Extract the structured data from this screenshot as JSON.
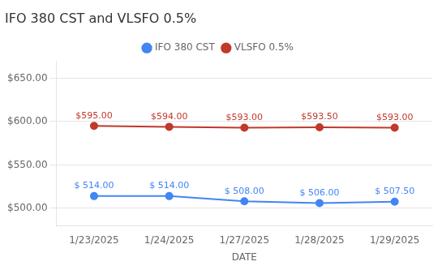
{
  "chart_data": {
    "type": "line",
    "title": "IFO 380 CST and VLSFO 0.5%",
    "xlabel": "DATE",
    "categories": [
      "1/23/2025",
      "1/24/2025",
      "1/27/2025",
      "1/28/2025",
      "1/29/2025"
    ],
    "series": [
      {
        "name": "IFO 380 CST",
        "color": "#4285F4",
        "marker": "circle",
        "values": [
          514.0,
          514.0,
          508.0,
          506.0,
          507.5
        ],
        "value_labels": [
          "$ 514.00",
          "$ 514.00",
          "$ 508.00",
          "$ 506.00",
          "$ 507.50"
        ]
      },
      {
        "name": "VLSFO 0.5%",
        "color": "#C0392B",
        "marker": "circle",
        "values": [
          595.0,
          594.0,
          593.0,
          593.5,
          593.0
        ],
        "value_labels": [
          "$595.00",
          "$594.00",
          "$593.00",
          "$593.50",
          "$593.00"
        ]
      }
    ],
    "ylim": [
      480,
      670
    ],
    "yticks": [
      {
        "value": 500,
        "label": "$500.00"
      },
      {
        "value": 550,
        "label": "$550.00"
      },
      {
        "value": 600,
        "label": "$600.00"
      },
      {
        "value": 650,
        "label": "$650.00"
      }
    ],
    "grid": true,
    "legend": "top",
    "data_labels": true
  }
}
